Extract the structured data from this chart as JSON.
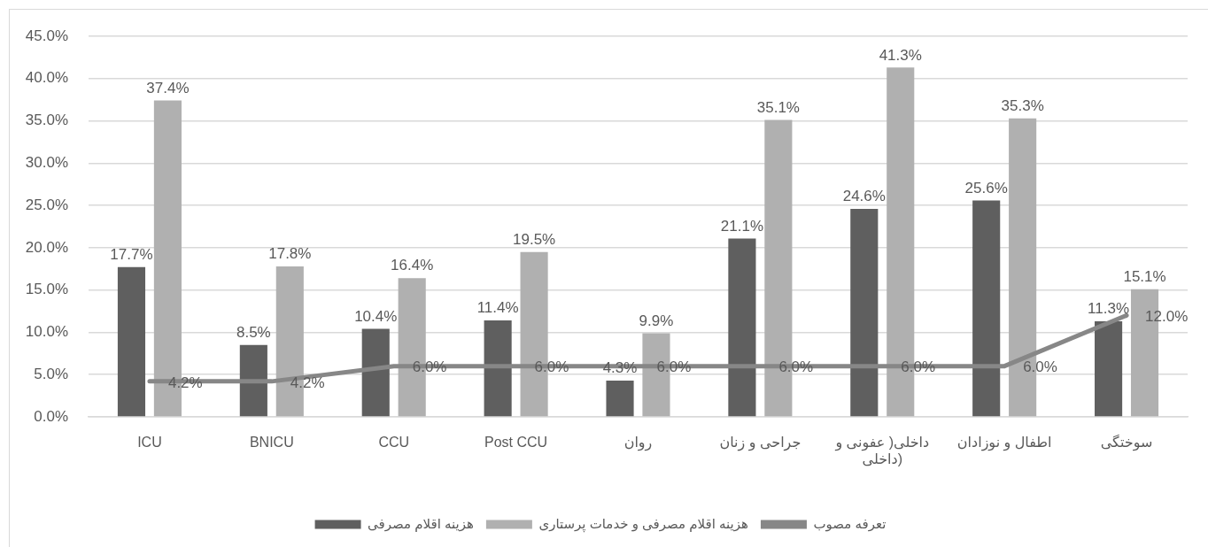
{
  "chart_data": {
    "type": "bar",
    "categories": [
      "ICU",
      "BNICU",
      "CCU",
      "Post CCU",
      "روان",
      "جراحی و زنان",
      "داخلی( عفونی و داخلی)",
      "اطفال و نوزادان",
      "سوختگی"
    ],
    "series": [
      {
        "name": "هزینه اقلام مصرفی",
        "color": "#5f5f5f",
        "values": [
          17.7,
          8.5,
          10.4,
          11.4,
          4.3,
          21.1,
          24.6,
          25.6,
          11.3
        ],
        "value_labels": [
          "17.7%",
          "8.5%",
          "10.4%",
          "11.4%",
          "4.3%",
          "21.1%",
          "24.6%",
          "25.6%",
          "11.3%"
        ]
      },
      {
        "name": "هزینه اقلام مصرفی و خدمات پرستاری",
        "color": "#b0b0b0",
        "values": [
          37.4,
          17.8,
          16.4,
          19.5,
          9.9,
          35.1,
          41.3,
          35.3,
          15.1
        ],
        "value_labels": [
          "37.4%",
          "17.8%",
          "16.4%",
          "19.5%",
          "9.9%",
          "35.1%",
          "41.3%",
          "35.3%",
          "15.1%"
        ]
      },
      {
        "name": "تعرفه مصوب",
        "type": "line",
        "color": "#878787",
        "marker": "none",
        "values": [
          4.2,
          4.2,
          6.0,
          6.0,
          6.0,
          6.0,
          6.0,
          6.0,
          12.0
        ],
        "value_labels": [
          "4.2%",
          "4.2%",
          "6.0%",
          "6.0%",
          "6.0%",
          "6.0%",
          "6.0%",
          "6.0%",
          "12.0%"
        ]
      }
    ],
    "ylim": [
      0,
      45
    ],
    "yticks": [
      {
        "value": 0,
        "label": "0.0%"
      },
      {
        "value": 5,
        "label": "5.0%"
      },
      {
        "value": 10,
        "label": "10.0%"
      },
      {
        "value": 15,
        "label": "15.0%"
      },
      {
        "value": 20,
        "label": "20.0%"
      },
      {
        "value": 25,
        "label": "25.0%"
      },
      {
        "value": 30,
        "label": "30.0%"
      },
      {
        "value": 35,
        "label": "35.0%"
      },
      {
        "value": 40,
        "label": "40.0%"
      },
      {
        "value": 45,
        "label": "45.0%"
      }
    ],
    "grid": "y",
    "legend": "bottom"
  }
}
